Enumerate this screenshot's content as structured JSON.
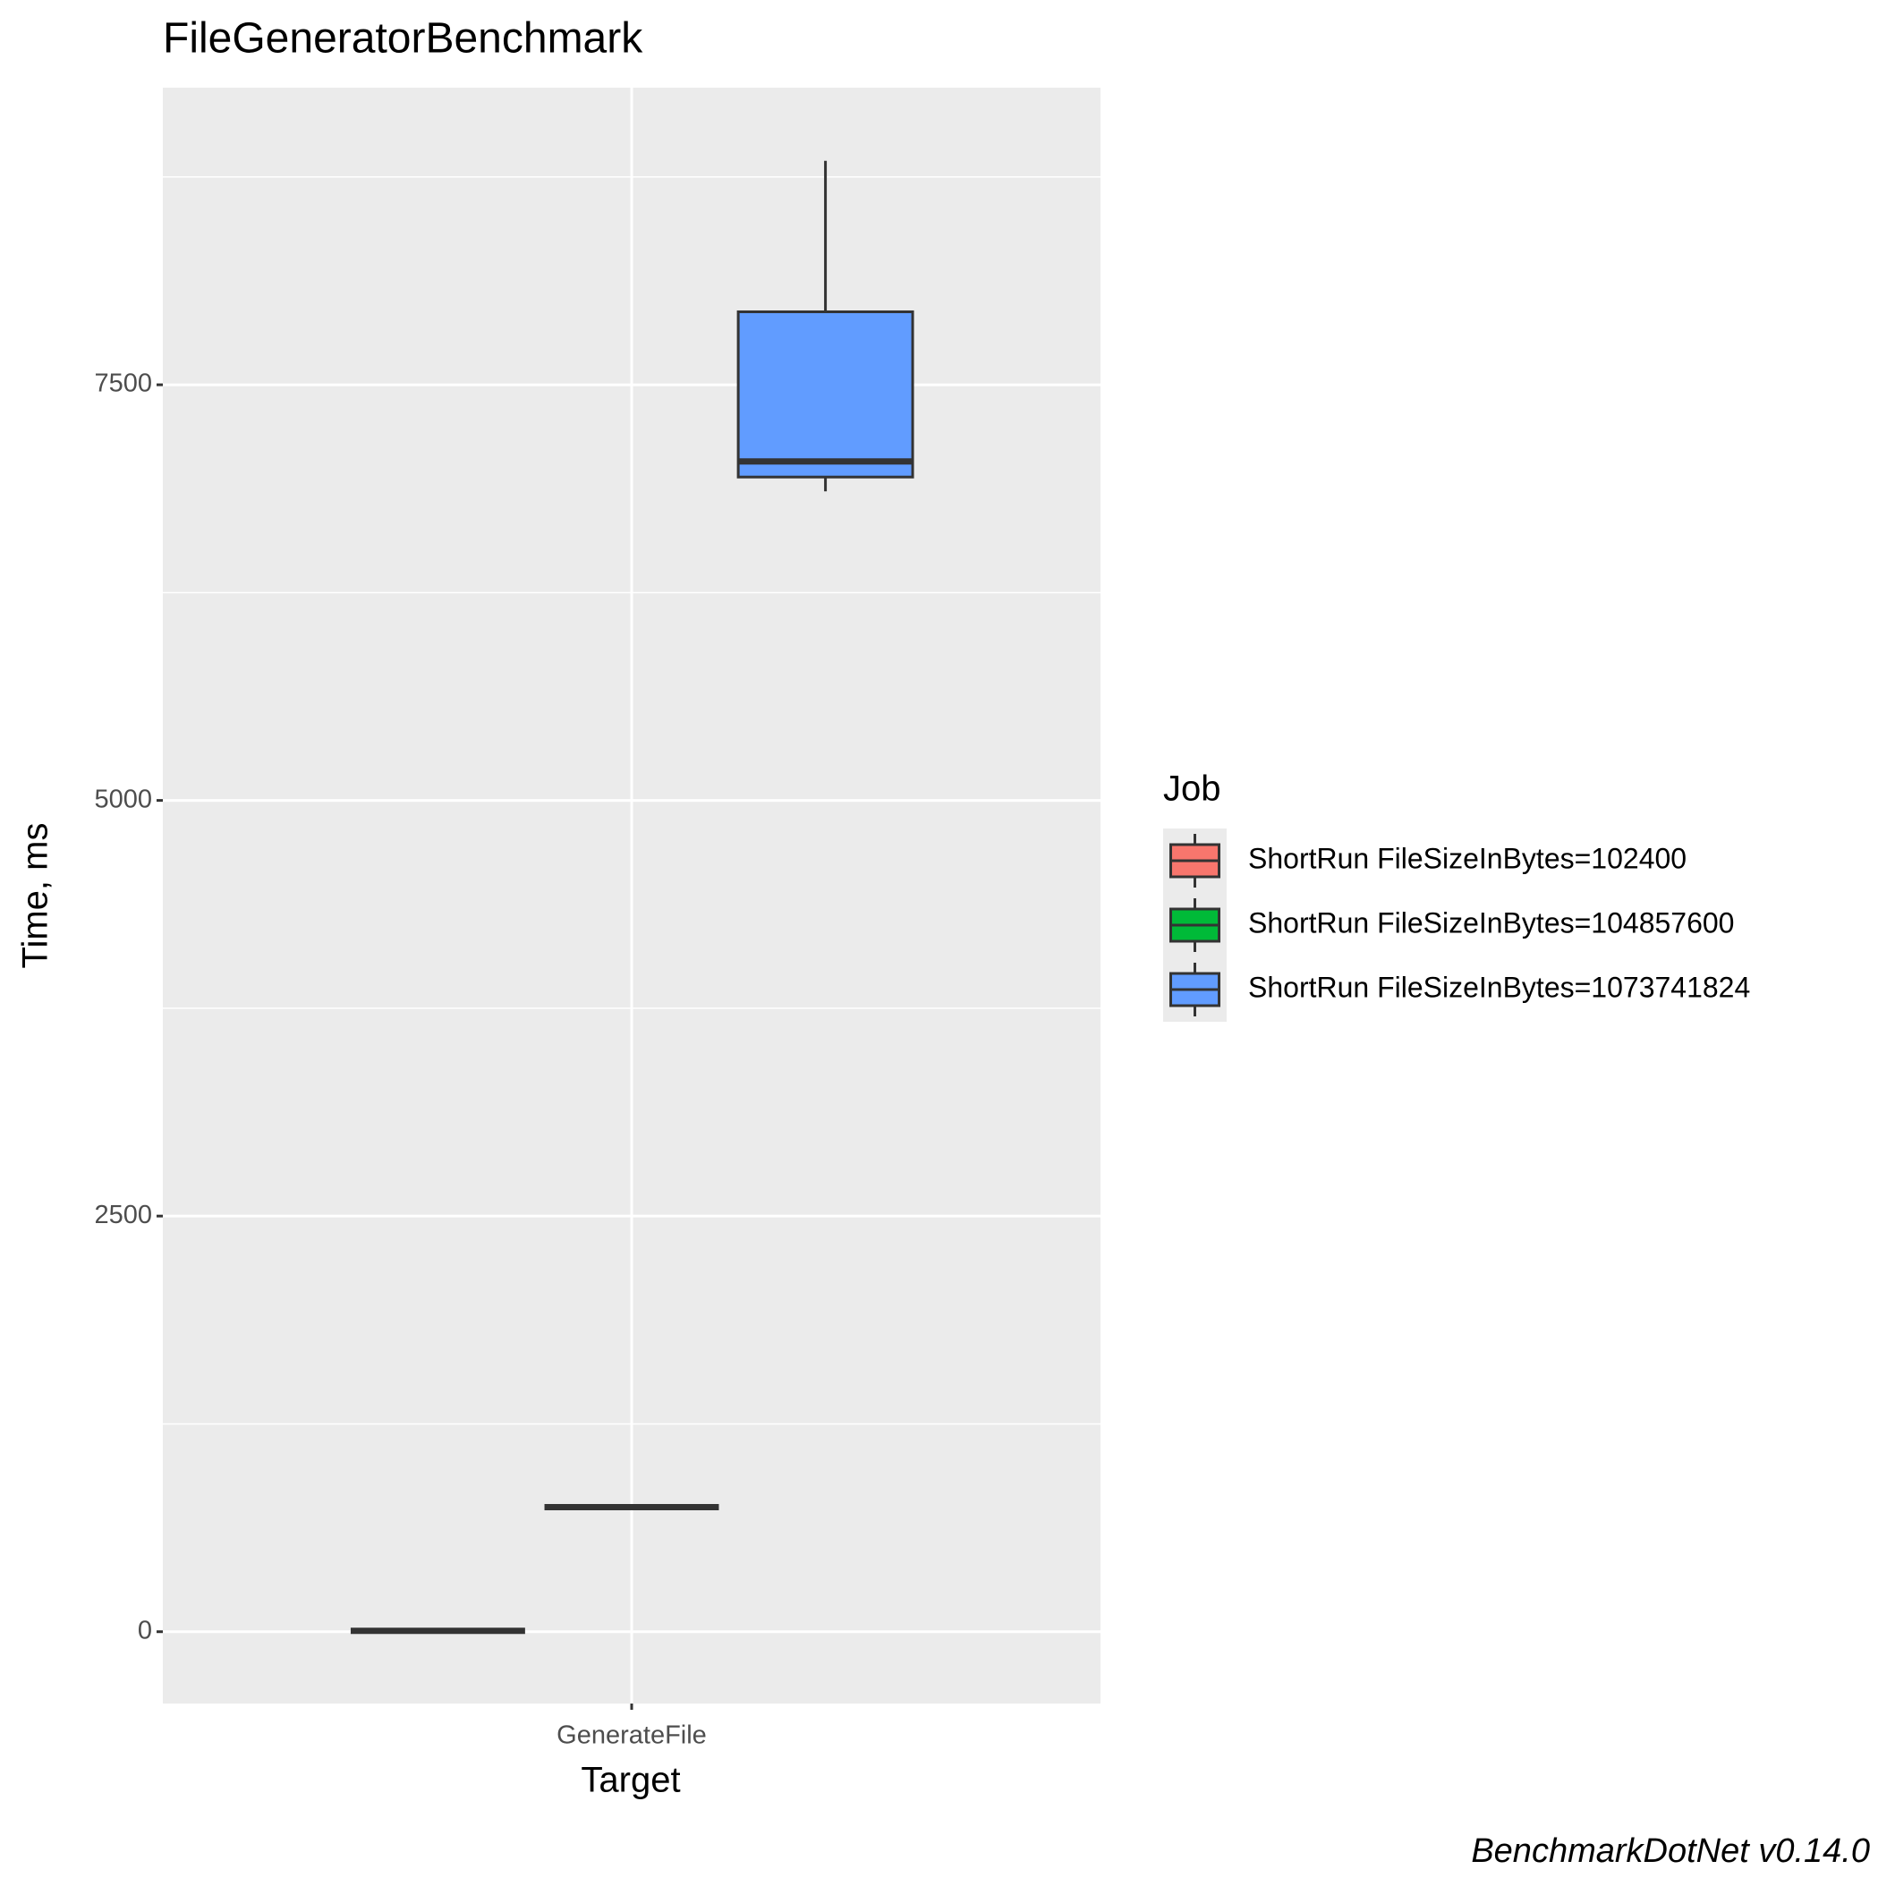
{
  "chart_data": {
    "type": "box",
    "title": "FileGeneratorBenchmark",
    "x_label": "Target",
    "y_label": "Time, ms",
    "caption": "BenchmarkDotNet v0.14.0",
    "categories": [
      "GenerateFile"
    ],
    "legend_title": "Job",
    "legend_position": "right",
    "grid": true,
    "ylim": [
      -432,
      9287
    ],
    "yticks": [
      0,
      2500,
      5000,
      7500
    ],
    "y_minor_grid": [
      1250,
      3750,
      6250,
      8750
    ],
    "series": [
      {
        "name": "ShortRun FileSizeInBytes=102400",
        "color": "#F8766D",
        "min": [
          5
        ],
        "q1": [
          5
        ],
        "median": [
          5
        ],
        "q3": [
          5
        ],
        "max": [
          5
        ]
      },
      {
        "name": "ShortRun FileSizeInBytes=104857600",
        "color": "#00BA38",
        "min": [
          749
        ],
        "q1": [
          749
        ],
        "median": [
          749
        ],
        "q3": [
          749
        ],
        "max": [
          749
        ]
      },
      {
        "name": "ShortRun FileSizeInBytes=1073741824",
        "color": "#619CFF",
        "min": [
          6859
        ],
        "q1": [
          6945
        ],
        "median": [
          7039
        ],
        "q3": [
          7939
        ],
        "max": [
          8847
        ]
      }
    ]
  }
}
